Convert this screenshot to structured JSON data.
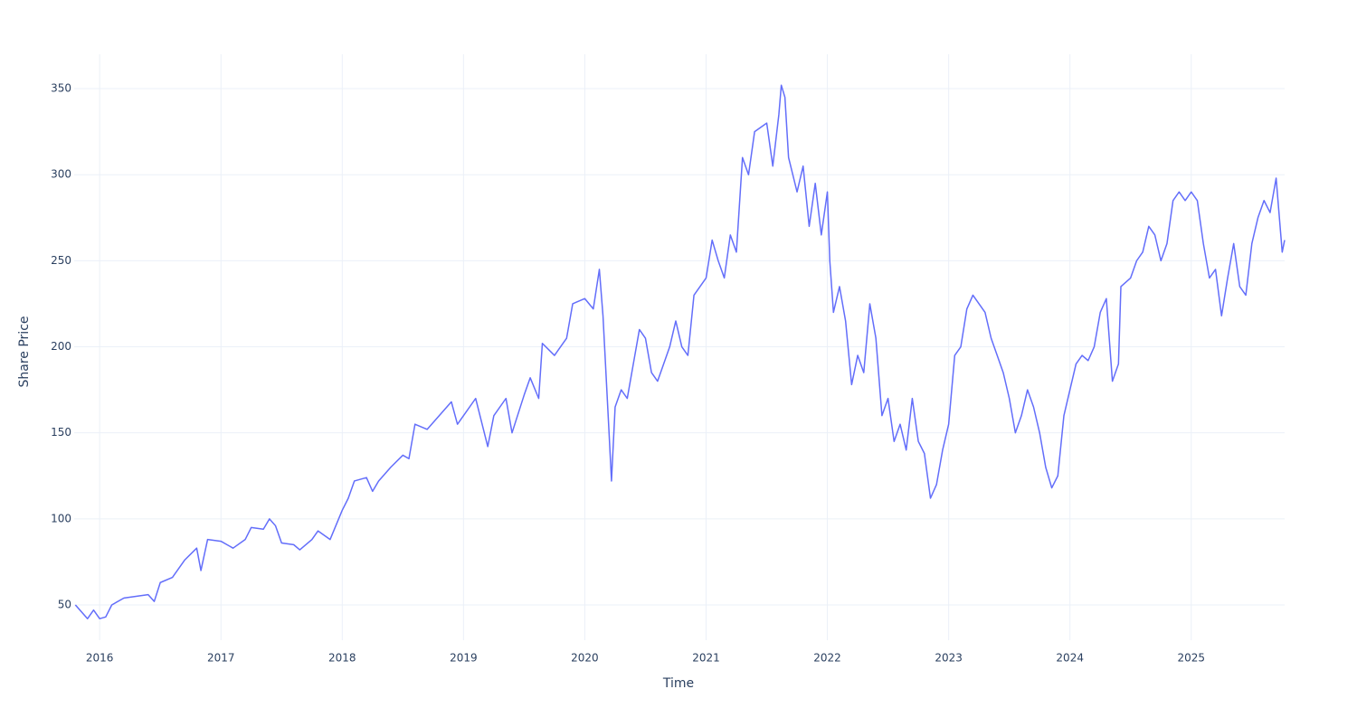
{
  "chart_data": {
    "type": "line",
    "x_label": "Time",
    "y_label": "Share Price",
    "x": [
      2015.8,
      2015.85,
      2015.9,
      2015.95,
      2016.0,
      2016.05,
      2016.1,
      2016.2,
      2016.3,
      2016.4,
      2016.45,
      2016.5,
      2016.6,
      2016.7,
      2016.8,
      2016.835,
      2016.89,
      2017.0,
      2017.1,
      2017.2,
      2017.25,
      2017.35,
      2017.4,
      2017.45,
      2017.5,
      2017.6,
      2017.65,
      2017.75,
      2017.8,
      2017.9,
      2018.0,
      2018.05,
      2018.1,
      2018.2,
      2018.25,
      2018.3,
      2018.4,
      2018.5,
      2018.55,
      2018.6,
      2018.7,
      2018.8,
      2018.9,
      2018.95,
      2019.0,
      2019.1,
      2019.2,
      2019.25,
      2019.35,
      2019.4,
      2019.5,
      2019.55,
      2019.62,
      2019.65,
      2019.75,
      2019.85,
      2019.9,
      2020.0,
      2020.07,
      2020.12,
      2020.15,
      2020.2,
      2020.22,
      2020.25,
      2020.3,
      2020.35,
      2020.45,
      2020.5,
      2020.55,
      2020.6,
      2020.7,
      2020.75,
      2020.8,
      2020.85,
      2020.9,
      2021.0,
      2021.05,
      2021.1,
      2021.15,
      2021.2,
      2021.25,
      2021.3,
      2021.35,
      2021.4,
      2021.5,
      2021.55,
      2021.6,
      2021.62,
      2021.65,
      2021.68,
      2021.75,
      2021.8,
      2021.85,
      2021.9,
      2021.95,
      2022.0,
      2022.02,
      2022.05,
      2022.1,
      2022.15,
      2022.2,
      2022.25,
      2022.3,
      2022.35,
      2022.4,
      2022.45,
      2022.5,
      2022.55,
      2022.6,
      2022.65,
      2022.7,
      2022.75,
      2022.8,
      2022.85,
      2022.9,
      2022.95,
      2023.0,
      2023.05,
      2023.1,
      2023.15,
      2023.2,
      2023.3,
      2023.35,
      2023.4,
      2023.45,
      2023.5,
      2023.55,
      2023.6,
      2023.65,
      2023.7,
      2023.75,
      2023.8,
      2023.85,
      2023.9,
      2023.95,
      2024.0,
      2024.05,
      2024.1,
      2024.15,
      2024.2,
      2024.25,
      2024.3,
      2024.35,
      2024.4,
      2024.42,
      2024.5,
      2024.55,
      2024.6,
      2024.65,
      2024.7,
      2024.75,
      2024.8,
      2024.85,
      2024.9,
      2024.95,
      2025.0,
      2025.05,
      2025.1,
      2025.15,
      2025.2,
      2025.25,
      2025.3,
      2025.35,
      2025.4,
      2025.45,
      2025.5,
      2025.55,
      2025.6,
      2025.65,
      2025.7,
      2025.75,
      2025.77
    ],
    "series": [
      {
        "color": "#636efa",
        "values": [
          50,
          46,
          42,
          47,
          42,
          43,
          50,
          54,
          55,
          56,
          52,
          63,
          66,
          76,
          83,
          70,
          88,
          87,
          83,
          88,
          95,
          94,
          100,
          96,
          86,
          85,
          82,
          88,
          93,
          88,
          105,
          112,
          122,
          124,
          116,
          122,
          130,
          137,
          135,
          155,
          152,
          160,
          168,
          155,
          160,
          170,
          142,
          160,
          170,
          150,
          172,
          182,
          170,
          202,
          195,
          205,
          225,
          228,
          222,
          245,
          218,
          150,
          122,
          165,
          175,
          170,
          210,
          205,
          185,
          180,
          200,
          215,
          200,
          195,
          230,
          240,
          262,
          250,
          240,
          265,
          255,
          310,
          300,
          325,
          330,
          305,
          335,
          352,
          345,
          310,
          290,
          305,
          270,
          295,
          265,
          290,
          250,
          220,
          235,
          215,
          178,
          195,
          185,
          225,
          205,
          160,
          170,
          145,
          155,
          140,
          170,
          145,
          138,
          112,
          120,
          140,
          155,
          195,
          200,
          222,
          230,
          220,
          205,
          195,
          185,
          170,
          150,
          160,
          175,
          165,
          150,
          130,
          118,
          125,
          160,
          175,
          190,
          195,
          192,
          200,
          220,
          228,
          180,
          190,
          235,
          240,
          250,
          255,
          270,
          265,
          250,
          260,
          285,
          290,
          285,
          290,
          285,
          260,
          240,
          245,
          218,
          240,
          260,
          235,
          230,
          260,
          275,
          285,
          278,
          298,
          255,
          262
        ]
      }
    ],
    "xlim": [
      2015.79,
      2025.77
    ],
    "xticks": [
      2016,
      2017,
      2018,
      2019,
      2020,
      2021,
      2022,
      2023,
      2024,
      2025
    ],
    "ylim": [
      29.5,
      370
    ],
    "yticks": [
      50,
      100,
      150,
      200,
      250,
      300,
      350
    ],
    "grid": true
  }
}
